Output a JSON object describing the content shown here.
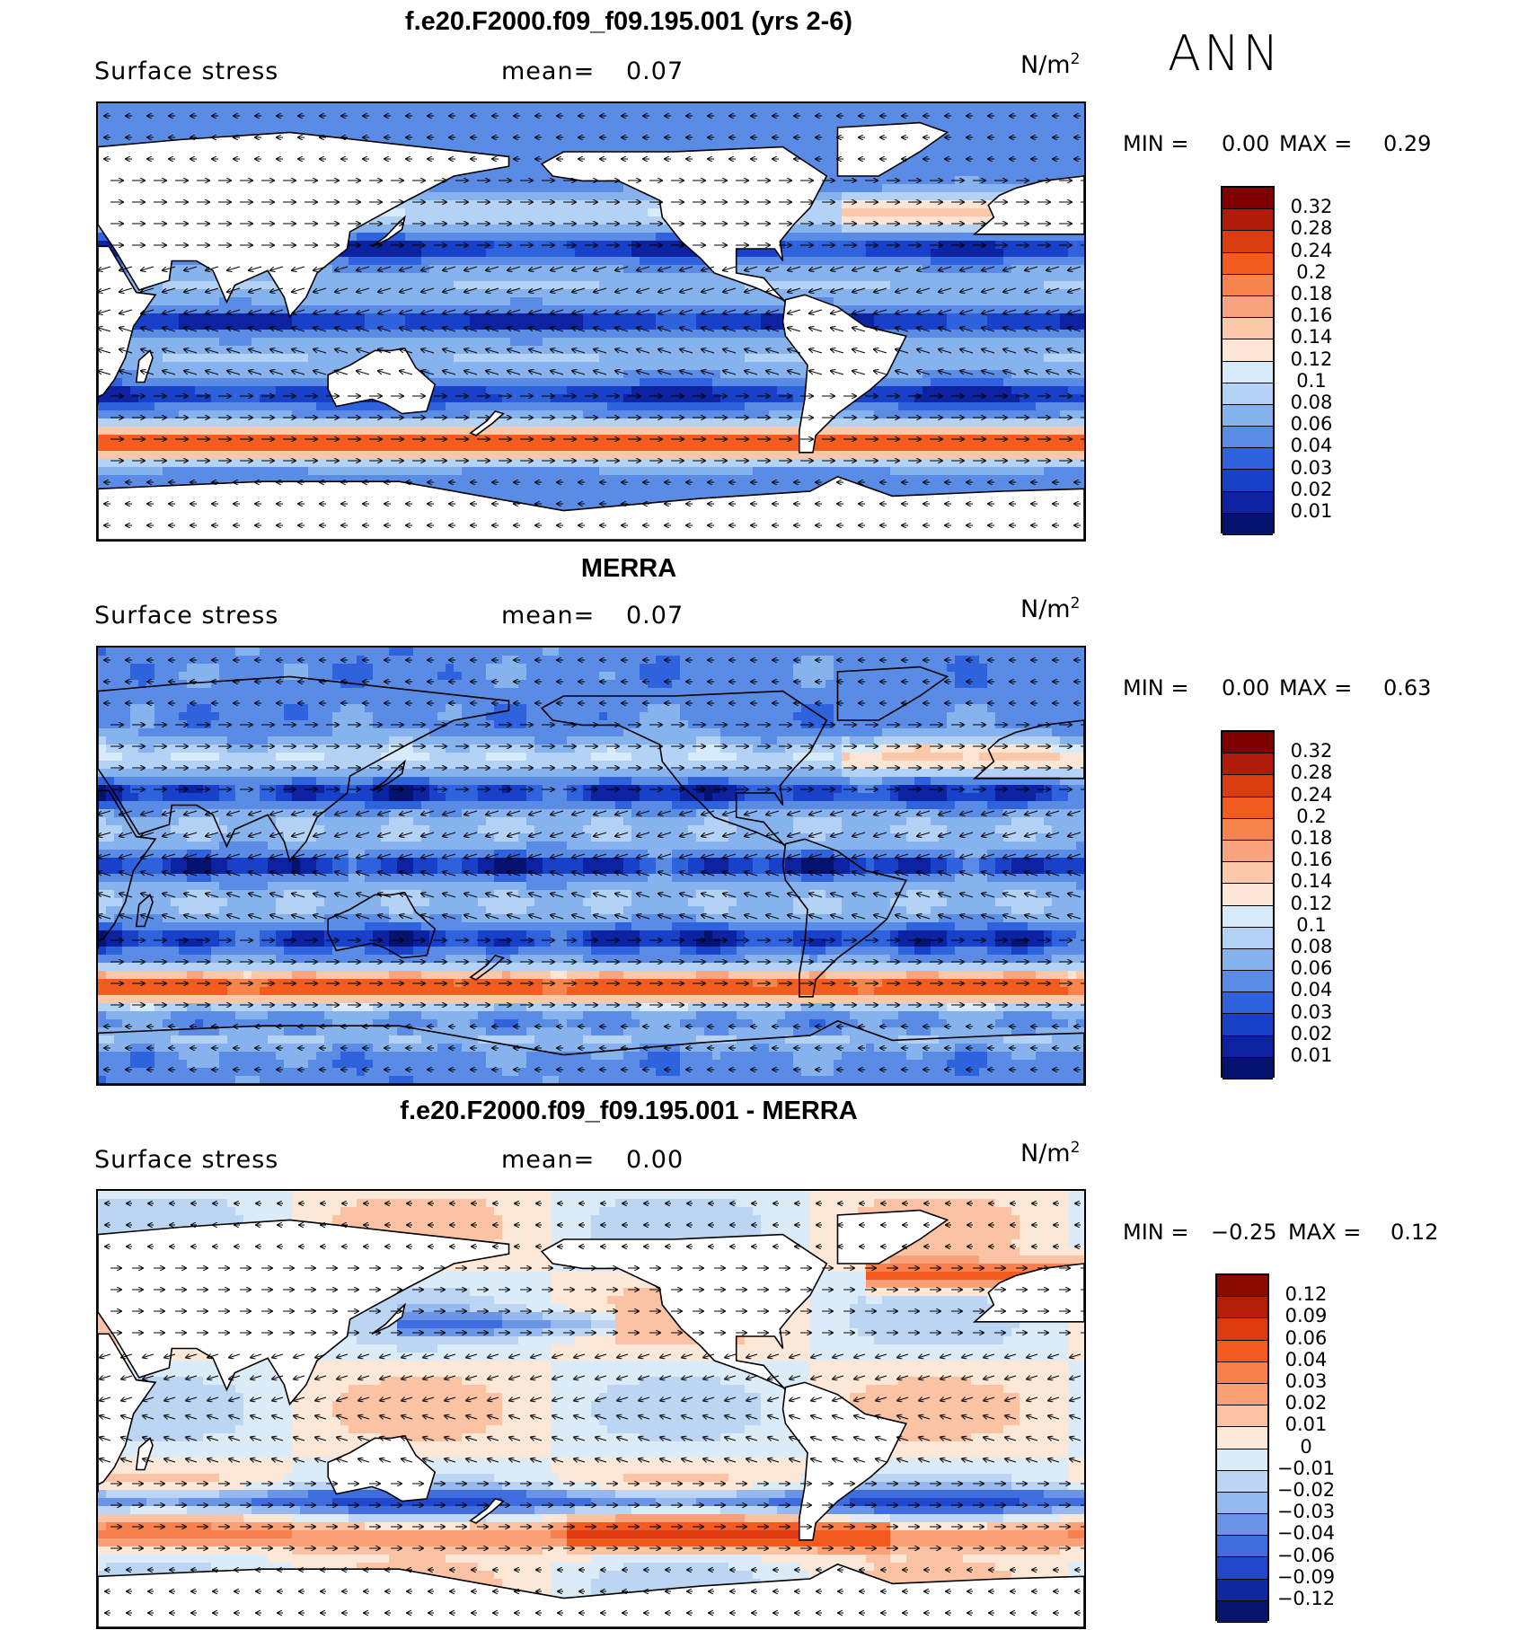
{
  "season": "ANN",
  "panels": [
    {
      "title": "f.e20.F2000.f09_f09.195.001 (yrs 2-6)",
      "variable": "Surface stress",
      "mean_label": "mean=",
      "mean_value": "0.07",
      "units": "N/m",
      "units_exp": "2",
      "min_label": "MIN =",
      "min_value": "0.00",
      "max_label": "MAX =",
      "max_value": "0.29",
      "kind": "model",
      "colorbar": {
        "labels": [
          "0.32",
          "0.28",
          "0.24",
          "0.2",
          "0.18",
          "0.16",
          "0.14",
          "0.12",
          "0.1",
          "0.08",
          "0.06",
          "0.04",
          "0.03",
          "0.02",
          "0.01"
        ],
        "colors": [
          "#7f0000",
          "#b21a0a",
          "#d93d0f",
          "#f25c1e",
          "#f7834d",
          "#f9a47c",
          "#fbc8aa",
          "#fde6d6",
          "#d8ebfa",
          "#b4d2f5",
          "#86b2ee",
          "#5a8ce6",
          "#2f63dd",
          "#1840c8",
          "#0c22a0",
          "#06136e"
        ]
      }
    },
    {
      "title": "MERRA",
      "variable": "Surface stress",
      "mean_label": "mean=",
      "mean_value": "0.07",
      "units": "N/m",
      "units_exp": "2",
      "min_label": "MIN =",
      "min_value": "0.00",
      "max_label": "MAX =",
      "max_value": "0.63",
      "kind": "obs",
      "colorbar": {
        "labels": [
          "0.32",
          "0.28",
          "0.24",
          "0.2",
          "0.18",
          "0.16",
          "0.14",
          "0.12",
          "0.1",
          "0.08",
          "0.06",
          "0.04",
          "0.03",
          "0.02",
          "0.01"
        ],
        "colors": [
          "#7f0000",
          "#b21a0a",
          "#d93d0f",
          "#f25c1e",
          "#f7834d",
          "#f9a47c",
          "#fbc8aa",
          "#fde6d6",
          "#d8ebfa",
          "#b4d2f5",
          "#86b2ee",
          "#5a8ce6",
          "#2f63dd",
          "#1840c8",
          "#0c22a0",
          "#06136e"
        ]
      }
    },
    {
      "title": "f.e20.F2000.f09_f09.195.001 - MERRA",
      "variable": "Surface stress",
      "mean_label": "mean=",
      "mean_value": "0.00",
      "units": "N/m",
      "units_exp": "2",
      "min_label": "MIN =",
      "min_value": "−0.25",
      "max_label": "MAX =",
      "max_value": "0.12",
      "kind": "diff",
      "colorbar": {
        "labels": [
          "0.12",
          "0.09",
          "0.06",
          "0.04",
          "0.03",
          "0.02",
          "0.01",
          "0",
          "−0.01",
          "−0.02",
          "−0.03",
          "−0.04",
          "−0.06",
          "−0.09",
          "−0.12"
        ],
        "colors": [
          "#8b0a00",
          "#b51e06",
          "#dc3a10",
          "#f25a1f",
          "#f7804e",
          "#f9a078",
          "#fbc3a3",
          "#fde7d6",
          "#dcebf8",
          "#bcd5f3",
          "#95b8ee",
          "#6a95e6",
          "#3f6ddd",
          "#2247c8",
          "#10279e",
          "#07146b"
        ]
      }
    }
  ]
}
